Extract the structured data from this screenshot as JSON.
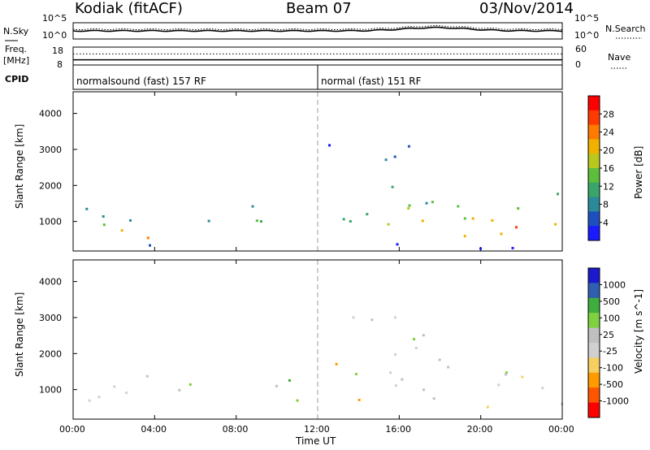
{
  "header": {
    "station": "Kodiak (fitACF)",
    "beam": "Beam 07",
    "date": "03/Nov/2014"
  },
  "colors": {
    "power": [
      "#1a1aff",
      "#1f4fbf",
      "#2a8a9a",
      "#3aa56a",
      "#5dbe3c",
      "#b9c81e",
      "#f1b100",
      "#ff7a00",
      "#ff3a00",
      "#ff0000"
    ],
    "velocity": [
      "#ff0000",
      "#ff5500",
      "#ff9a00",
      "#f5d060",
      "#d0d0d0",
      "#c0c0c0",
      "#7fd23f",
      "#3fae3f",
      "#2f5fb0",
      "#1a1acc"
    ],
    "noise_sky": "#000000",
    "freq_line": "#000000"
  },
  "chart_data": [
    {
      "type": "line",
      "name": "noise",
      "left_label": "N.Sky",
      "right_label": "N.Search",
      "y_ticks_left": [
        "10^5",
        "10^0"
      ],
      "y_ticks_right": [
        "10^5",
        "10^0"
      ],
      "right_legend_style": "dotted"
    },
    {
      "type": "line",
      "name": "freq-nave",
      "left_label_1": "Freq.",
      "left_label_2": "[MHz]",
      "y_ticks_left": [
        "18",
        "8"
      ],
      "y_ticks_right": [
        "60",
        "0"
      ],
      "right_label": "Nave",
      "right_legend_style": "dotted",
      "freq_mhz": 10.9,
      "nave_level": 0.62
    },
    {
      "type": "table",
      "name": "cpid",
      "label": "CPID",
      "segments": [
        {
          "label": "normalsound (fast) 157 RF",
          "start_hour": 0,
          "end_hour": 12
        },
        {
          "label": "normal (fast) 151 RF",
          "start_hour": 12,
          "end_hour": 24
        }
      ]
    },
    {
      "type": "heatmap",
      "name": "power",
      "ylabel": "Slant Range [km]",
      "y_ticks": [
        "4000",
        "3000",
        "2000",
        "1000"
      ],
      "ylim": [
        180,
        4600
      ],
      "xlim": [
        0,
        24
      ],
      "colorbar_label": "Power [dB]",
      "colorbar_ticks": [
        "28",
        "24",
        "20",
        "16",
        "12",
        "8",
        "4"
      ],
      "colorbar_range": [
        0,
        32
      ],
      "marker_hour": 12,
      "blobs": [
        {
          "h": 0.2,
          "h2": 5.4,
          "r1": 500,
          "r2": 1500,
          "level": 0.75
        },
        {
          "h": 5.2,
          "h2": 7.7,
          "r1": 850,
          "r2": 1250,
          "level": 0.5
        },
        {
          "h": 8.6,
          "h2": 11.6,
          "r1": 700,
          "r2": 1500,
          "level": 0.55
        },
        {
          "h": 11.8,
          "h2": 14.4,
          "r1": 700,
          "r2": 1900,
          "level": 0.6
        },
        {
          "h": 12.2,
          "h2": 16.2,
          "r1": 2500,
          "r2": 3200,
          "level": 0.35
        },
        {
          "h": 15.2,
          "h2": 24,
          "r1": 500,
          "r2": 1900,
          "level": 0.85
        },
        {
          "h": 15.6,
          "h2": 17.4,
          "r1": 1200,
          "r2": 3400,
          "level": 0.4
        },
        {
          "h": 0,
          "h2": 24,
          "r1": 250,
          "r2": 420,
          "level": 0.2
        }
      ]
    },
    {
      "type": "heatmap",
      "name": "velocity",
      "ylabel": "Slant Range [km]",
      "y_ticks": [
        "4000",
        "3000",
        "2000",
        "1000"
      ],
      "ylim": [
        180,
        4600
      ],
      "xlim": [
        0,
        24
      ],
      "colorbar_label": "Velocity [m s^-1]",
      "colorbar_ticks": [
        "1000",
        "500",
        "100",
        "25",
        "-25",
        "-100",
        "-500",
        "-1000"
      ],
      "x_ticks": [
        "00:00",
        "04:00",
        "08:00",
        "12:00",
        "16:00",
        "20:00",
        "00:00"
      ],
      "xlabel": "Time UT",
      "marker_hour": 12,
      "blobs": [
        {
          "h": 0.2,
          "h2": 5.4,
          "r1": 500,
          "r2": 1500,
          "vel": "grey"
        },
        {
          "h": 5.0,
          "h2": 7.7,
          "r1": 850,
          "r2": 1250,
          "vel": "green"
        },
        {
          "h": 8.6,
          "h2": 11.6,
          "r1": 700,
          "r2": 1500,
          "vel": "green"
        },
        {
          "h": 11.8,
          "h2": 14.4,
          "r1": 700,
          "r2": 1900,
          "vel": "orange"
        },
        {
          "h": 12.2,
          "h2": 16.2,
          "r1": 2500,
          "r2": 3200,
          "vel": "grey"
        },
        {
          "h": 15.2,
          "h2": 24,
          "r1": 500,
          "r2": 1900,
          "vel": "grey"
        },
        {
          "h": 15.6,
          "h2": 17.4,
          "r1": 1200,
          "r2": 3400,
          "vel": "grey"
        }
      ]
    }
  ]
}
